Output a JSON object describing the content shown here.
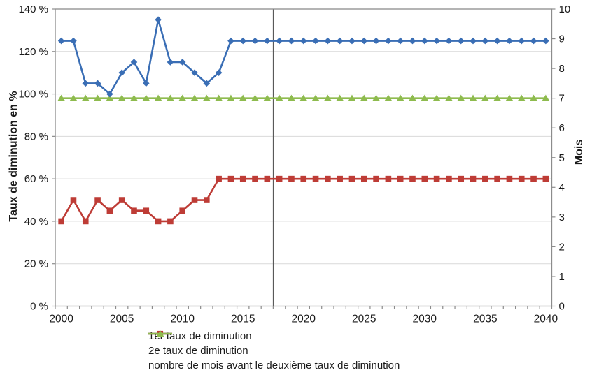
{
  "chart_data": {
    "type": "line",
    "background": "#FFFFFF",
    "grid_color": "#D9D9D9",
    "axis_color": "#8C8C8C",
    "text_color": "#1A1A1A",
    "x_years": [
      2000,
      2001,
      2002,
      2003,
      2004,
      2005,
      2006,
      2007,
      2008,
      2009,
      2010,
      2011,
      2012,
      2013,
      2014,
      2015,
      2016,
      2017,
      2018,
      2019,
      2020,
      2021,
      2022,
      2023,
      2024,
      2025,
      2026,
      2027,
      2028,
      2029,
      2030,
      2031,
      2032,
      2033,
      2034,
      2035,
      2036,
      2037,
      2038,
      2039,
      2040
    ],
    "x_axis": {
      "labels": [
        "2000",
        "2005",
        "2010",
        "2015",
        "2020",
        "2025",
        "2030",
        "2035",
        "2040"
      ],
      "minor_tick_every": 1
    },
    "left_axis": {
      "title": "Taux de diminution en %",
      "min": 0,
      "max": 140,
      "step": 20,
      "tick_labels": [
        "0 %",
        "20 %",
        "40 %",
        "60 %",
        "80 %",
        "100 %",
        "120 %",
        "140 %"
      ]
    },
    "right_axis": {
      "title": "Mois",
      "min": 0,
      "max": 10,
      "step": 1,
      "tick_labels": [
        "0",
        "1",
        "2",
        "3",
        "4",
        "5",
        "6",
        "7",
        "8",
        "9",
        "10"
      ]
    },
    "reference_line": {
      "between": [
        2017,
        2018
      ],
      "color": "#595959"
    },
    "series": [
      {
        "name": "1er taux de diminution",
        "color": "#3A6EB5",
        "marker": "diamond",
        "axis": "left",
        "values": [
          125,
          125,
          105,
          105,
          100,
          110,
          115,
          105,
          135,
          115,
          115,
          110,
          105,
          110,
          125,
          125,
          125,
          125,
          125,
          125,
          125,
          125,
          125,
          125,
          125,
          125,
          125,
          125,
          125,
          125,
          125,
          125,
          125,
          125,
          125,
          125,
          125,
          125,
          125,
          125,
          125
        ]
      },
      {
        "name": "2e taux de diminution",
        "color": "#BE3C36",
        "marker": "square",
        "axis": "left",
        "values": [
          40,
          50,
          40,
          50,
          45,
          50,
          45,
          45,
          40,
          40,
          45,
          50,
          50,
          60,
          60,
          60,
          60,
          60,
          60,
          60,
          60,
          60,
          60,
          60,
          60,
          60,
          60,
          60,
          60,
          60,
          60,
          60,
          60,
          60,
          60,
          60,
          60,
          60,
          60,
          60,
          60
        ]
      },
      {
        "name": "nombre de mois avant le deuxième taux de diminution",
        "color": "#8EBB4E",
        "marker": "triangle",
        "axis": "right",
        "values": [
          7,
          7,
          7,
          7,
          7,
          7,
          7,
          7,
          7,
          7,
          7,
          7,
          7,
          7,
          7,
          7,
          7,
          7,
          7,
          7,
          7,
          7,
          7,
          7,
          7,
          7,
          7,
          7,
          7,
          7,
          7,
          7,
          7,
          7,
          7,
          7,
          7,
          7,
          7,
          7,
          7
        ]
      }
    ],
    "legend_position": "bottom-left"
  }
}
